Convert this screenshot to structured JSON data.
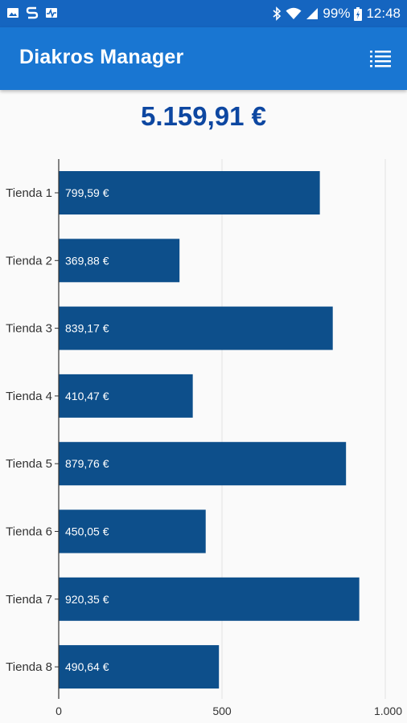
{
  "status_bar": {
    "battery": "99%",
    "time": "12:48"
  },
  "app_bar": {
    "title": "Diakros Manager",
    "menu_icon": "list-menu-icon"
  },
  "summary": {
    "total": "5.159,91 €"
  },
  "colors": {
    "app_bar": "#1976d2",
    "status_bar": "#1565c0",
    "bar": "#0d4f8b",
    "total_text": "#0d47a1"
  },
  "chart_data": {
    "type": "bar",
    "orientation": "horizontal",
    "categories": [
      "Tienda 1",
      "Tienda 2",
      "Tienda 3",
      "Tienda 4",
      "Tienda 5",
      "Tienda 6",
      "Tienda 7",
      "Tienda 8"
    ],
    "values": [
      799.59,
      369.88,
      839.17,
      410.47,
      879.76,
      450.05,
      920.35,
      490.64
    ],
    "value_labels": [
      "799,59 €",
      "369,88 €",
      "839,17 €",
      "410,47 €",
      "879,76 €",
      "450,05 €",
      "920,35 €",
      "490,64 €"
    ],
    "xlim": [
      0,
      1000
    ],
    "xticks": [
      0,
      500,
      1000
    ],
    "xtick_labels": [
      "0",
      "500",
      "1.000"
    ],
    "grid": true,
    "title": "",
    "xlabel": "",
    "ylabel": ""
  }
}
